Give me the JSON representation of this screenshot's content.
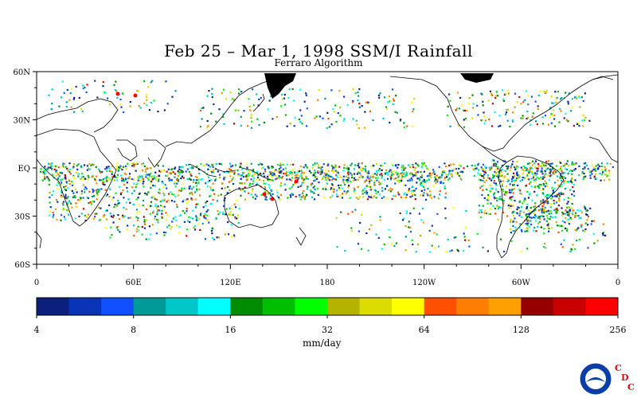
{
  "map": {
    "title": "Feb 25 – Mar 1, 1998 SSM/I Rainfall",
    "subtitle": "Ferraro Algorithm",
    "lat_labels": [
      "60N",
      "30N",
      "EQ",
      "30S",
      "60S"
    ],
    "lon_labels": [
      "0",
      "60E",
      "120E",
      "180",
      "120W",
      "60W",
      "0"
    ],
    "lat_range": [
      -60,
      60
    ],
    "lon_range": [
      0,
      360
    ]
  },
  "colorbar": {
    "tick_labels": [
      "4",
      "8",
      "16",
      "32",
      "64",
      "128",
      "256"
    ],
    "units": "mm/day",
    "colors": [
      "#0b1f7e",
      "#0a34b8",
      "#1050ff",
      "#009a98",
      "#00c8c8",
      "#00ffff",
      "#008c00",
      "#00bf00",
      "#00ff00",
      "#b4b400",
      "#dcdc00",
      "#ffff00",
      "#ff5000",
      "#ff7d00",
      "#ffa000",
      "#960000",
      "#c80000",
      "#ff0000"
    ]
  },
  "logo": {
    "agency": "NOAA",
    "letters": [
      "C",
      "D",
      "C"
    ]
  }
}
